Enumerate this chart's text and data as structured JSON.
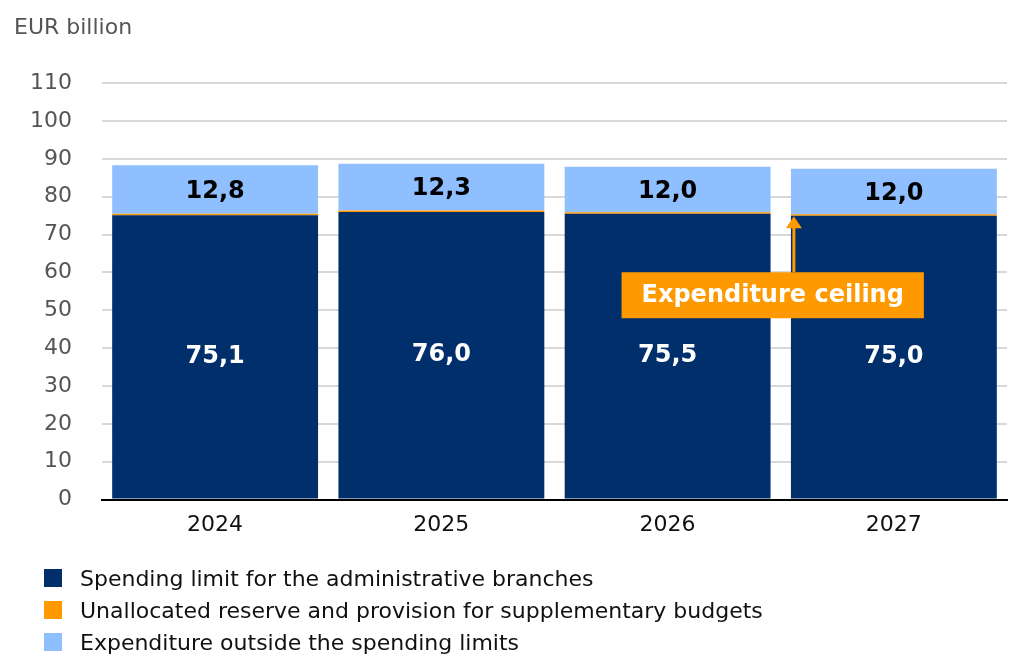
{
  "chart_data": {
    "type": "bar",
    "stacked": true,
    "ylabel": "EUR billion",
    "categories": [
      "2024",
      "2025",
      "2026",
      "2027"
    ],
    "series": [
      {
        "name": "Spending limit for the administrative branches",
        "color": "#002f6c",
        "values": [
          75.1,
          76.0,
          75.5,
          75.0
        ],
        "value_labels": [
          "75,1",
          "76,0",
          "75,5",
          "75,0"
        ]
      },
      {
        "name": "Unallocated reserve and provision for supplementary budgets",
        "color": "#ff9900",
        "values": [
          0.4,
          0.4,
          0.4,
          0.4
        ]
      },
      {
        "name": "Expenditure outside the spending limits",
        "color": "#8fbfff",
        "values": [
          12.8,
          12.3,
          12.0,
          12.0
        ],
        "value_labels": [
          "12,8",
          "12,3",
          "12,0",
          "12,0"
        ]
      }
    ],
    "ylim": [
      0,
      110
    ],
    "yticks": [
      0,
      10,
      20,
      30,
      40,
      50,
      60,
      70,
      80,
      90,
      100,
      110
    ],
    "grid": "y",
    "legend": "bottom",
    "annotations": [
      {
        "text": "Expenditure ceiling",
        "x": "2027",
        "y": 75.4
      }
    ]
  }
}
